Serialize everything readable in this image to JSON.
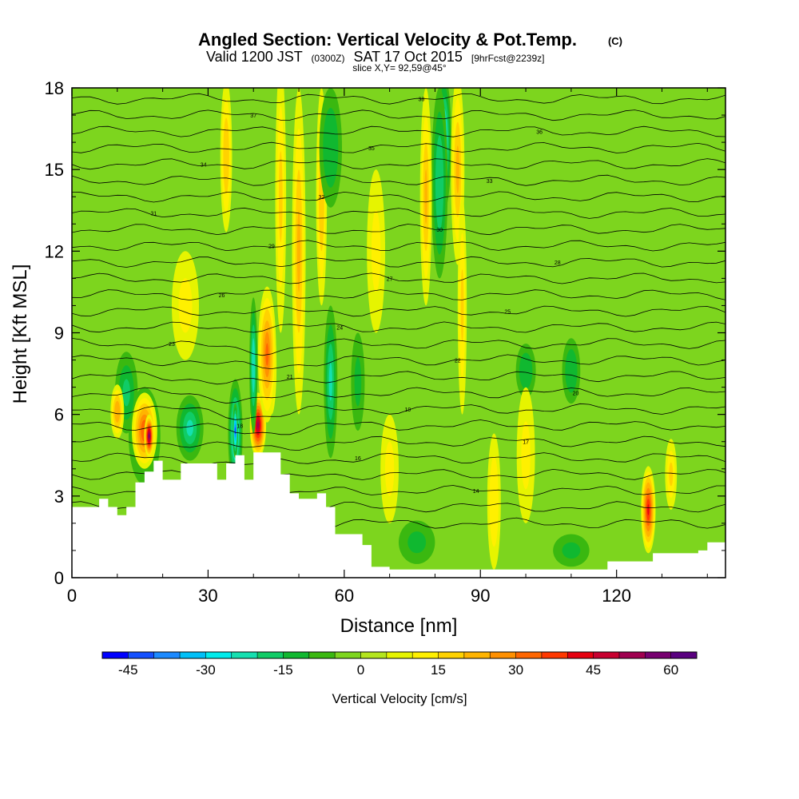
{
  "header": {
    "title": "Angled Section: Vertical Velocity & Pot.Temp.",
    "title_unit": "(C)",
    "valid_prefix": "Valid 1200 JST",
    "valid_utc": "(0300Z)",
    "valid_date": "SAT 17 Oct 2015",
    "forecast": "[9hrFcst@2239z]",
    "slice": "slice X,Y= 92,59@45°"
  },
  "chart_data": {
    "type": "heatmap",
    "xlabel": "Distance [nm]",
    "ylabel": "Height [Kft MSL]",
    "xlim": [
      0,
      144
    ],
    "ylim": [
      0,
      18
    ],
    "xticks": [
      0,
      30,
      60,
      90,
      120
    ],
    "xtick_labels": [
      "0",
      "30",
      "60",
      "90",
      "120"
    ],
    "yticks": [
      0,
      3,
      6,
      9,
      12,
      15,
      18
    ],
    "ytick_labels": [
      "0",
      "3",
      "6",
      "9",
      "12",
      "15",
      "18"
    ],
    "background_color": "#7dd51e",
    "terrain": [
      [
        0,
        2.6
      ],
      [
        3,
        2.6
      ],
      [
        6,
        2.9
      ],
      [
        8,
        2.6
      ],
      [
        10,
        2.3
      ],
      [
        12,
        2.6
      ],
      [
        14,
        3.5
      ],
      [
        16,
        3.9
      ],
      [
        18,
        4.3
      ],
      [
        20,
        3.6
      ],
      [
        24,
        4.2
      ],
      [
        30,
        4.2
      ],
      [
        32,
        3.6
      ],
      [
        34,
        4.2
      ],
      [
        36,
        4.5
      ],
      [
        38,
        3.6
      ],
      [
        40,
        4.6
      ],
      [
        44,
        4.6
      ],
      [
        46,
        3.8
      ],
      [
        48,
        3.1
      ],
      [
        50,
        2.9
      ],
      [
        54,
        3.1
      ],
      [
        56,
        2.6
      ],
      [
        58,
        1.6
      ],
      [
        62,
        1.6
      ],
      [
        64,
        1.2
      ],
      [
        66,
        0.4
      ],
      [
        70,
        0.3
      ],
      [
        110,
        0.3
      ],
      [
        114,
        0.3
      ],
      [
        118,
        0.6
      ],
      [
        124,
        0.6
      ],
      [
        128,
        0.9
      ],
      [
        138,
        1.0
      ],
      [
        140,
        1.3
      ],
      [
        144,
        1.3
      ]
    ],
    "velocity_features": [
      {
        "x": 16,
        "y": 5.2,
        "w": -15,
        "rx": 3.5,
        "ry": 1.8
      },
      {
        "x": 12,
        "y": 6.8,
        "w": -15,
        "rx": 2.5,
        "ry": 1.5
      },
      {
        "x": 16,
        "y": 5.4,
        "w": 32,
        "rx": 2.8,
        "ry": 1.4
      },
      {
        "x": 17,
        "y": 5.2,
        "w": 55,
        "rx": 1.1,
        "ry": 0.8
      },
      {
        "x": 10,
        "y": 6.1,
        "w": 22,
        "rx": 1.5,
        "ry": 1.0
      },
      {
        "x": 26,
        "y": 5.5,
        "w": -18,
        "rx": 3.0,
        "ry": 1.2
      },
      {
        "x": 36,
        "y": 5.3,
        "w": -30,
        "rx": 1.6,
        "ry": 2.0
      },
      {
        "x": 36,
        "y": 5.4,
        "w": -40,
        "rx": 0.6,
        "ry": 1.0
      },
      {
        "x": 41,
        "y": 5.6,
        "w": 48,
        "rx": 1.8,
        "ry": 1.2
      },
      {
        "x": 44,
        "y": 7.8,
        "w": 60,
        "rx": 1.1,
        "ry": 1.8
      },
      {
        "x": 43,
        "y": 8.2,
        "w": 30,
        "rx": 2.0,
        "ry": 2.5
      },
      {
        "x": 40,
        "y": 7.8,
        "w": -22,
        "rx": 0.9,
        "ry": 2.5
      },
      {
        "x": 57,
        "y": 7.2,
        "w": -18,
        "rx": 1.5,
        "ry": 2.8
      },
      {
        "x": 63,
        "y": 7.2,
        "w": -10,
        "rx": 1.5,
        "ry": 1.8
      },
      {
        "x": 50,
        "y": 12.0,
        "w": 20,
        "rx": 1.5,
        "ry": 6.0
      },
      {
        "x": 55,
        "y": 14.0,
        "w": 16,
        "rx": 1.2,
        "ry": 4.0
      },
      {
        "x": 46,
        "y": 14.0,
        "w": 14,
        "rx": 1.2,
        "ry": 5.0
      },
      {
        "x": 57,
        "y": 15.8,
        "w": -12,
        "rx": 2.5,
        "ry": 2.2
      },
      {
        "x": 34,
        "y": 15.5,
        "w": 16,
        "rx": 1.3,
        "ry": 2.8
      },
      {
        "x": 82,
        "y": 16.0,
        "w": -28,
        "rx": 1.6,
        "ry": 2.5
      },
      {
        "x": 81,
        "y": 14.5,
        "w": -16,
        "rx": 1.8,
        "ry": 3.5
      },
      {
        "x": 78,
        "y": 14.0,
        "w": 18,
        "rx": 1.3,
        "ry": 4.0
      },
      {
        "x": 85,
        "y": 15.0,
        "w": 20,
        "rx": 1.5,
        "ry": 3.5
      },
      {
        "x": 86,
        "y": 10.0,
        "w": 14,
        "rx": 1.0,
        "ry": 4.0
      },
      {
        "x": 127,
        "y": 2.5,
        "w": 40,
        "rx": 1.6,
        "ry": 1.6
      },
      {
        "x": 132,
        "y": 3.8,
        "w": 14,
        "rx": 1.3,
        "ry": 1.3
      },
      {
        "x": 93,
        "y": 2.8,
        "w": 12,
        "rx": 1.5,
        "ry": 2.5
      },
      {
        "x": 100,
        "y": 7.6,
        "w": -12,
        "rx": 2.2,
        "ry": 1.0
      },
      {
        "x": 110,
        "y": 7.6,
        "w": -12,
        "rx": 2.0,
        "ry": 1.2
      },
      {
        "x": 67,
        "y": 12.0,
        "w": 10,
        "rx": 2.0,
        "ry": 3.0
      },
      {
        "x": 25,
        "y": 10.0,
        "w": 10,
        "rx": 3.0,
        "ry": 2.0
      },
      {
        "x": 70,
        "y": 4.0,
        "w": 10,
        "rx": 2.0,
        "ry": 2.0
      },
      {
        "x": 100,
        "y": 4.5,
        "w": 10,
        "rx": 2.0,
        "ry": 2.5
      },
      {
        "x": 76,
        "y": 1.3,
        "w": -8,
        "rx": 4.0,
        "ry": 0.8
      },
      {
        "x": 110,
        "y": 1.0,
        "w": -8,
        "rx": 4.0,
        "ry": 0.6
      }
    ],
    "contour_levels": [
      {
        "y": 2.0,
        "label": "13"
      },
      {
        "y": 2.6,
        "label": "13"
      },
      {
        "y": 3.2,
        "label": "14"
      },
      {
        "y": 3.8,
        "label": "15"
      },
      {
        "y": 4.4,
        "label": "16"
      },
      {
        "y": 5.0,
        "label": "17"
      },
      {
        "y": 5.6,
        "label": "18"
      },
      {
        "y": 6.2,
        "label": "19"
      },
      {
        "y": 6.8,
        "label": "20"
      },
      {
        "y": 7.4,
        "label": "21"
      },
      {
        "y": 8.0,
        "label": "22"
      },
      {
        "y": 8.6,
        "label": "23"
      },
      {
        "y": 9.2,
        "label": "24"
      },
      {
        "y": 9.8,
        "label": "25"
      },
      {
        "y": 10.4,
        "label": "26"
      },
      {
        "y": 11.0,
        "label": "27"
      },
      {
        "y": 11.6,
        "label": "28"
      },
      {
        "y": 12.2,
        "label": "29"
      },
      {
        "y": 12.8,
        "label": "30"
      },
      {
        "y": 13.4,
        "label": "31"
      },
      {
        "y": 14.0,
        "label": "32"
      },
      {
        "y": 14.6,
        "label": "33"
      },
      {
        "y": 15.2,
        "label": "34"
      },
      {
        "y": 15.8,
        "label": "35"
      },
      {
        "y": 16.4,
        "label": "36"
      },
      {
        "y": 17.0,
        "label": "37"
      },
      {
        "y": 17.6,
        "label": "38"
      }
    ]
  },
  "colorbar": {
    "title": "Vertical Velocity [cm/s]",
    "colors": [
      "#0000ff",
      "#1450ff",
      "#1c8aff",
      "#00c0f8",
      "#00ecec",
      "#14e0b0",
      "#10cc66",
      "#10b830",
      "#3ab810",
      "#7dd51e",
      "#b4e61e",
      "#e6f400",
      "#fff000",
      "#ffd200",
      "#ffb400",
      "#ff9000",
      "#ff6600",
      "#ff3800",
      "#e60010",
      "#c80030",
      "#a00050",
      "#780070",
      "#5a0080"
    ],
    "ticks": [
      -45,
      -30,
      -15,
      0,
      15,
      30,
      45,
      60
    ],
    "tick_labels": [
      "-45",
      "-30",
      "-15",
      "0",
      "15",
      "30",
      "45",
      "60"
    ],
    "min": -50,
    "max": 65
  }
}
